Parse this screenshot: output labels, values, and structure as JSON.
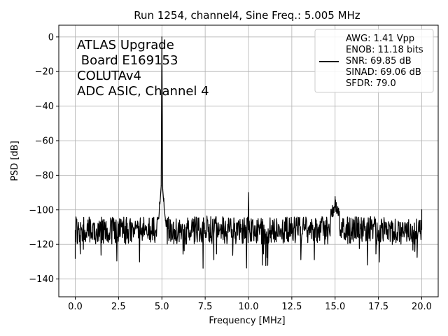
{
  "chart_data": {
    "type": "line",
    "title": "Run 1254, channel4, Sine Freq.: 5.005 MHz",
    "xlabel": "Frequency [MHz]",
    "ylabel": "PSD [dB]",
    "xlim": [
      -0.95,
      20.95
    ],
    "ylim": [
      -150.3,
      6.8
    ],
    "xticks": [
      0.0,
      2.5,
      5.0,
      7.5,
      10.0,
      12.5,
      15.0,
      17.5,
      20.0
    ],
    "xtick_labels": [
      "0.0",
      "2.5",
      "5.0",
      "7.5",
      "10.0",
      "12.5",
      "15.0",
      "17.5",
      "20.0"
    ],
    "yticks": [
      0,
      -20,
      -40,
      -60,
      -80,
      -100,
      -120,
      -140
    ],
    "ytick_labels": [
      "0",
      "−20",
      "−40",
      "−60",
      "−80",
      "−100",
      "−120",
      "−140"
    ],
    "grid": true,
    "legend_position": "upper right",
    "line_color": "#000000",
    "annotation": [
      "ATLAS Upgrade",
      " Board E169153",
      "COLUTAv4",
      "ADC ASIC, Channel 4"
    ],
    "legend_lines": [
      "AWG: 1.41 Vpp",
      "ENOB: 11.18 bits",
      "SNR: 69.85 dB",
      "SINAD: 69.06 dB",
      "SFDR: 79.0"
    ],
    "series": [
      {
        "x": [
          0.0,
          0.5,
          1.0,
          1.5,
          2.0,
          2.5,
          3.0,
          3.5,
          4.0,
          4.5,
          4.8,
          4.9,
          4.96,
          5.0,
          5.05,
          5.1,
          5.2,
          5.5,
          6.0,
          6.5,
          7.0,
          7.5,
          8.0,
          8.5,
          9.0,
          9.5,
          9.98,
          10.0,
          10.02,
          10.5,
          11.0,
          11.5,
          12.0,
          12.5,
          13.0,
          13.5,
          14.0,
          14.5,
          14.9,
          15.0,
          15.1,
          15.5,
          16.0,
          16.5,
          17.0,
          17.5,
          18.0,
          18.3,
          18.5,
          19.0,
          19.5,
          19.9,
          20.0
        ],
        "y": [
          -112,
          -115,
          -110,
          -113,
          -116,
          -112,
          -114,
          -111,
          -113,
          -110,
          -105,
          -95,
          -86,
          0,
          -88,
          -95,
          -106,
          -112,
          -114,
          -111,
          -113,
          -112,
          -114,
          -112,
          -113,
          -111,
          -105,
          -90,
          -106,
          -112,
          -114,
          -111,
          -113,
          -112,
          -114,
          -111,
          -113,
          -108,
          -100,
          -96,
          -100,
          -108,
          -113,
          -111,
          -114,
          -112,
          -113,
          -120,
          -114,
          -112,
          -113,
          -106,
          -100
        ]
      }
    ]
  }
}
